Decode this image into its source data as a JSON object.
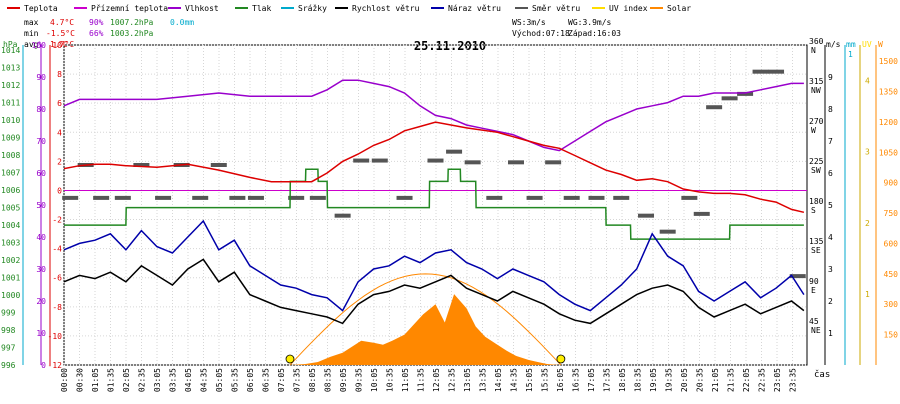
{
  "chart_data": {
    "type": "line",
    "title": "25.11.2010",
    "time_label": "čas",
    "legend": [
      {
        "name": "Teplota",
        "color": "#dd0000"
      },
      {
        "name": "Přízemní teplota",
        "color": "#cc00cc"
      },
      {
        "name": "Vlhkost",
        "color": "#9900cc"
      },
      {
        "name": "Tlak",
        "color": "#228822"
      },
      {
        "name": "Srážky",
        "color": "#00aacc"
      },
      {
        "name": "Rychlost větru",
        "color": "#000000"
      },
      {
        "name": "Náraz větru",
        "color": "#0000aa"
      },
      {
        "name": "Směr větru",
        "color": "#555555"
      },
      {
        "name": "UV index",
        "color": "#ffdd00"
      },
      {
        "name": "Solar",
        "color": "#ff8800"
      }
    ],
    "stats": {
      "max": {
        "label": "max",
        "temp": "4.7°C",
        "hum": "90%",
        "press": "1007.2hPa",
        "rain": "0.0mm"
      },
      "min": {
        "label": "min",
        "temp": "-1.5°C",
        "hum": "66%",
        "press": "1003.2hPa"
      },
      "avg": {
        "label": "avg",
        "temp": "1.7°C"
      }
    },
    "wind_info": {
      "ws": "WS:3m/s",
      "wg": "WG:3.9m/s",
      "sunrise": "Východ:07:18",
      "sunset": "Západ:16:03"
    },
    "x_ticks": [
      "00:00",
      "00:30",
      "01:05",
      "01:35",
      "02:05",
      "02:35",
      "03:05",
      "03:35",
      "04:05",
      "04:35",
      "05:05",
      "05:35",
      "06:05",
      "06:35",
      "07:05",
      "07:35",
      "08:05",
      "08:35",
      "09:05",
      "09:35",
      "10:05",
      "10:35",
      "11:05",
      "11:35",
      "12:05",
      "12:35",
      "13:05",
      "13:35",
      "14:05",
      "14:35",
      "15:05",
      "15:35",
      "16:05",
      "16:35",
      "17:05",
      "17:35",
      "18:05",
      "18:35",
      "19:05",
      "19:35",
      "20:05",
      "20:35",
      "21:05",
      "21:35",
      "22:05",
      "22:35",
      "23:05",
      "23:35"
    ],
    "axes": {
      "pressure": {
        "unit": "hPa",
        "color": "#228822",
        "ticks": [
          "1014",
          "1013",
          "1012",
          "1011",
          "1010",
          "1009",
          "1008",
          "1007",
          "1006",
          "1005",
          "1004",
          "1003",
          "1002",
          "1001",
          "1000",
          "999",
          "998",
          "997",
          "996"
        ]
      },
      "humidity": {
        "unit": "%",
        "color": "#9900cc",
        "ticks": [
          "100",
          "90",
          "80",
          "70",
          "60",
          "50",
          "40",
          "30",
          "20",
          "10",
          "0"
        ]
      },
      "temperature": {
        "unit": "°C",
        "color": "#dd0000",
        "ticks": [
          "10",
          "8",
          "6",
          "4",
          "2",
          "0",
          "-2",
          "-4",
          "-6",
          "-8",
          "-10",
          "-12"
        ]
      },
      "direction": {
        "ticks": [
          {
            "deg": "360",
            "dir": "N"
          },
          {
            "deg": "315",
            "dir": "NW"
          },
          {
            "deg": "270",
            "dir": "W"
          },
          {
            "deg": "225",
            "dir": "SW"
          },
          {
            "deg": "180",
            "dir": "S"
          },
          {
            "deg": "135",
            "dir": "SE"
          },
          {
            "deg": "90",
            "dir": "E"
          },
          {
            "deg": "45",
            "dir": "NE"
          }
        ]
      },
      "wind": {
        "unit": "m/s",
        "color": "#000000",
        "ticks": [
          "9",
          "8",
          "7",
          "6",
          "5",
          "4",
          "3",
          "2",
          "1"
        ]
      },
      "rain": {
        "unit": "mm",
        "color": "#00aacc",
        "ticks": [
          "1",
          "0"
        ]
      },
      "uv": {
        "unit": "UV",
        "color": "#ffdd00",
        "ticks": [
          "4",
          "3",
          "2",
          "1"
        ]
      },
      "solar": {
        "unit": "W",
        "color": "#ff8800",
        "ticks": [
          "1500",
          "1350",
          "1200",
          "1050",
          "900",
          "750",
          "600",
          "450",
          "300",
          "150"
        ]
      }
    },
    "series": {
      "temperature": {
        "color": "#dd0000",
        "time": [
          0,
          0.5,
          1,
          1.5,
          2,
          3,
          4,
          5,
          6,
          6.7,
          7.2,
          7.5,
          8,
          8.5,
          9,
          9.5,
          10,
          10.5,
          11,
          11.5,
          12,
          12.5,
          13,
          14,
          15,
          15.5,
          16,
          16.5,
          17,
          17.5,
          18,
          18.5,
          19,
          19.5,
          20,
          20.5,
          21,
          21.5,
          22,
          22.5,
          23,
          23.5,
          23.9
        ],
        "values": [
          1.5,
          1.7,
          1.8,
          1.8,
          1.7,
          1.6,
          1.8,
          1.4,
          0.9,
          0.6,
          0.6,
          0.6,
          0.6,
          1.2,
          2.0,
          2.5,
          3.1,
          3.5,
          4.1,
          4.4,
          4.7,
          4.5,
          4.3,
          4.0,
          3.4,
          3.1,
          2.9,
          2.4,
          1.9,
          1.4,
          1.1,
          0.7,
          0.8,
          0.6,
          0.1,
          -0.1,
          -0.2,
          -0.2,
          -0.3,
          -0.6,
          -0.8,
          -1.3,
          -1.5
        ]
      },
      "ground_temperature": {
        "color": "#cc00cc",
        "time": [
          0,
          24
        ],
        "values": [
          0,
          0
        ]
      },
      "humidity": {
        "color": "#9900cc",
        "time": [
          0,
          0.5,
          1,
          2,
          3,
          4,
          5,
          6,
          7,
          8,
          8.5,
          9,
          9.5,
          10,
          10.5,
          11,
          11.5,
          12,
          12.5,
          13,
          13.5,
          14,
          14.5,
          15,
          15.5,
          16,
          16.5,
          17,
          17.5,
          18,
          18.5,
          19,
          19.5,
          20,
          20.5,
          21,
          21.5,
          22,
          22.5,
          23,
          23.5,
          23.9
        ],
        "values": [
          81,
          83,
          83,
          83,
          83,
          84,
          85,
          84,
          84,
          84,
          86,
          89,
          89,
          88,
          87,
          85,
          81,
          78,
          77,
          75,
          74,
          73,
          72,
          70,
          68,
          67,
          70,
          73,
          76,
          78,
          80,
          81,
          82,
          84,
          84,
          85,
          85,
          85,
          86,
          87,
          88,
          88
        ]
      },
      "pressure": {
        "color": "#228822",
        "time": [
          0,
          2,
          2.01,
          7.3,
          7.31,
          7.8,
          7.81,
          8.2,
          8.21,
          8.5,
          8.51,
          11.8,
          11.81,
          12.4,
          12.41,
          12.8,
          12.81,
          13.3,
          13.31,
          17.5,
          17.51,
          18.3,
          18.31,
          21.5,
          21.51,
          23.9
        ],
        "values": [
          1004.0,
          1004.0,
          1005.0,
          1005.0,
          1006.5,
          1006.5,
          1007.2,
          1007.2,
          1006.5,
          1006.5,
          1005.0,
          1005.0,
          1006.5,
          1006.5,
          1007.2,
          1007.2,
          1006.5,
          1006.5,
          1005.0,
          1005.0,
          1004.0,
          1004.0,
          1003.2,
          1003.2,
          1004.0,
          1004.0
        ]
      },
      "wind_speed": {
        "color": "#000000",
        "time": [
          0,
          0.5,
          1,
          1.5,
          2,
          2.5,
          3,
          3.5,
          4,
          4.5,
          5,
          5.5,
          6,
          6.5,
          7,
          7.5,
          8,
          8.5,
          9,
          9.5,
          10,
          10.5,
          11,
          11.5,
          12,
          12.5,
          13,
          13.5,
          14,
          14.5,
          15,
          15.5,
          16,
          16.5,
          17,
          17.5,
          18,
          18.5,
          19,
          19.5,
          20,
          20.5,
          21,
          21.5,
          22,
          22.5,
          23,
          23.5,
          23.9
        ],
        "values": [
          2.6,
          2.8,
          2.7,
          2.9,
          2.6,
          3.1,
          2.8,
          2.5,
          3.0,
          3.3,
          2.6,
          2.9,
          2.2,
          2.0,
          1.8,
          1.7,
          1.6,
          1.5,
          1.3,
          1.9,
          2.2,
          2.3,
          2.5,
          2.4,
          2.6,
          2.8,
          2.4,
          2.2,
          2.0,
          2.3,
          2.1,
          1.9,
          1.6,
          1.4,
          1.3,
          1.6,
          1.9,
          2.2,
          2.4,
          2.5,
          2.3,
          1.8,
          1.5,
          1.7,
          1.9,
          1.6,
          1.8,
          2.0,
          1.7
        ]
      },
      "wind_gust": {
        "color": "#0000aa",
        "time": [
          0,
          0.5,
          1,
          1.5,
          2,
          2.5,
          3,
          3.5,
          4,
          4.5,
          5,
          5.5,
          6,
          6.5,
          7,
          7.5,
          8,
          8.5,
          9,
          9.5,
          10,
          10.5,
          11,
          11.5,
          12,
          12.5,
          13,
          13.5,
          14,
          14.5,
          15,
          15.5,
          16,
          16.5,
          17,
          17.5,
          18,
          18.5,
          19,
          19.5,
          20,
          20.5,
          21,
          21.5,
          22,
          22.5,
          23,
          23.5,
          23.9
        ],
        "values": [
          3.6,
          3.8,
          3.9,
          4.1,
          3.6,
          4.2,
          3.7,
          3.5,
          4.0,
          4.5,
          3.6,
          3.9,
          3.1,
          2.8,
          2.5,
          2.4,
          2.2,
          2.1,
          1.7,
          2.6,
          3.0,
          3.1,
          3.4,
          3.2,
          3.5,
          3.6,
          3.2,
          3.0,
          2.7,
          3.0,
          2.8,
          2.6,
          2.2,
          1.9,
          1.7,
          2.1,
          2.5,
          3.0,
          4.1,
          3.4,
          3.1,
          2.3,
          2.0,
          2.3,
          2.6,
          2.1,
          2.4,
          2.8,
          2.2
        ]
      },
      "wind_direction": {
        "color": "#555555",
        "samples": [
          [
            0.2,
            188
          ],
          [
            0.7,
            225
          ],
          [
            1.2,
            188
          ],
          [
            1.9,
            188
          ],
          [
            2.5,
            225
          ],
          [
            3.2,
            188
          ],
          [
            3.8,
            225
          ],
          [
            4.4,
            188
          ],
          [
            5.0,
            225
          ],
          [
            5.6,
            188
          ],
          [
            6.2,
            188
          ],
          [
            7.5,
            188
          ],
          [
            8.2,
            188
          ],
          [
            9.0,
            168
          ],
          [
            9.6,
            230
          ],
          [
            10.2,
            230
          ],
          [
            11.0,
            188
          ],
          [
            12.0,
            230
          ],
          [
            12.6,
            240
          ],
          [
            13.2,
            228
          ],
          [
            13.9,
            188
          ],
          [
            14.6,
            228
          ],
          [
            15.2,
            188
          ],
          [
            15.8,
            228
          ],
          [
            16.4,
            188
          ],
          [
            17.2,
            188
          ],
          [
            18.0,
            188
          ],
          [
            18.8,
            168
          ],
          [
            19.5,
            150
          ],
          [
            20.2,
            188
          ],
          [
            20.6,
            170
          ],
          [
            21.0,
            290
          ],
          [
            21.5,
            300
          ],
          [
            22.0,
            305
          ],
          [
            22.5,
            330
          ],
          [
            23.0,
            330
          ],
          [
            23.7,
            100
          ]
        ]
      },
      "solar": {
        "color": "#ff8800",
        "time": [
          7.3,
          7.8,
          8.2,
          8.6,
          9.0,
          9.3,
          9.6,
          10.0,
          10.3,
          10.6,
          11.0,
          11.3,
          11.6,
          12.0,
          12.3,
          12.6,
          13.0,
          13.3,
          13.6,
          14.0,
          14.3,
          14.6,
          15.0,
          15.3,
          15.6,
          16.0
        ],
        "values": [
          0,
          5,
          15,
          40,
          60,
          90,
          120,
          110,
          100,
          120,
          150,
          200,
          250,
          300,
          210,
          350,
          280,
          190,
          140,
          100,
          70,
          45,
          25,
          15,
          5,
          0
        ]
      },
      "solar_theoretical": {
        "color": "#ff8800",
        "time": [
          7.3,
          16.05
        ],
        "peak": 450
      },
      "uv_index": {
        "color": "#ffdd00",
        "time": [],
        "values": []
      }
    }
  }
}
